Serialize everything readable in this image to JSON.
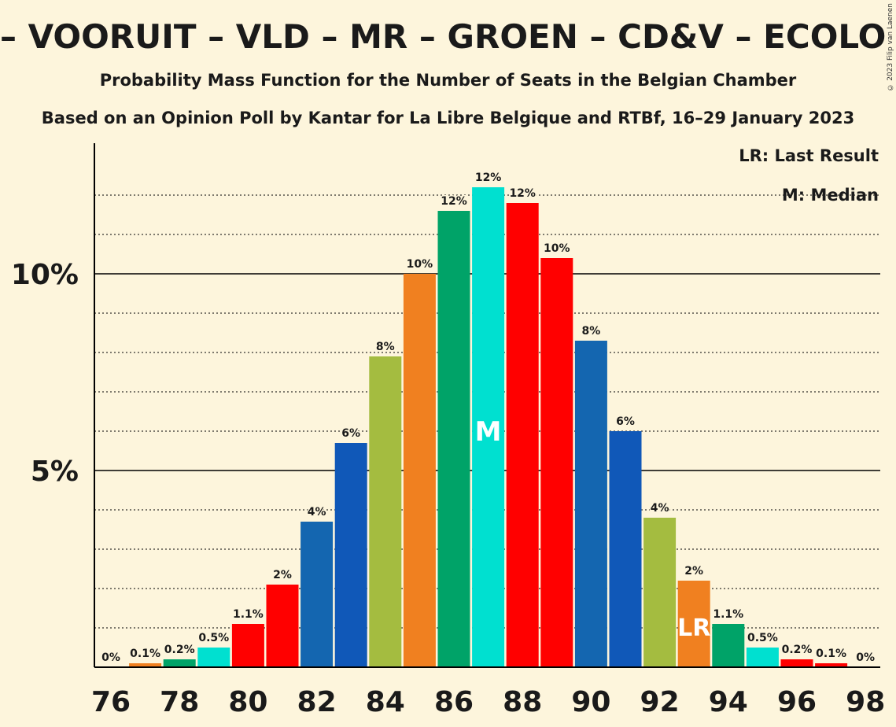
{
  "title": "– VOORUIT – VLD – MR – GROEN – CD&V – ECOLO –",
  "subtitle": "Probability Mass Function for the Number of Seats in the Belgian Chamber",
  "subtitle2": "Based on an Opinion Poll by Kantar for La Libre Belgique and RTBf, 16–29 January 2023",
  "copyright": "© 2023 Filip van Laenen",
  "legend": {
    "last_result": "LR: Last Result",
    "median": "M: Median"
  },
  "chart_data": {
    "type": "bar",
    "x": [
      76,
      77,
      78,
      79,
      80,
      81,
      82,
      83,
      84,
      85,
      86,
      87,
      88,
      89,
      90,
      91,
      92,
      93,
      94,
      95,
      96,
      97,
      98
    ],
    "values": [
      0,
      0.1,
      0.2,
      0.5,
      1.1,
      2.1,
      3.7,
      5.7,
      7.9,
      10.0,
      11.6,
      12.2,
      11.8,
      10.4,
      8.3,
      6.0,
      3.8,
      2.2,
      1.1,
      0.5,
      0.2,
      0.1,
      0
    ],
    "labels": [
      "0%",
      "0.1%",
      "0.2%",
      "0.5%",
      "1.1%",
      "2%",
      "4%",
      "6%",
      "8%",
      "10%",
      "12%",
      "12%",
      "12%",
      "10%",
      "8%",
      "6%",
      "4%",
      "2%",
      "1.1%",
      "0.5%",
      "0.2%",
      "0.1%",
      "0%"
    ],
    "colors": [
      "#00a368",
      "#f08020",
      "#00a368",
      "#00e0d0",
      "#ff0000",
      "#ff0000",
      "#1466b0",
      "#1058b8",
      "#a4bc40",
      "#f08020",
      "#00a368",
      "#00e0d0",
      "#ff0000",
      "#ff0000",
      "#1466b0",
      "#1058b8",
      "#a4bc40",
      "#f08020",
      "#00a368",
      "#00e0d0",
      "#ff0000",
      "#ff0000",
      "#1466b0"
    ],
    "x_tick_labels": [
      "76",
      "78",
      "80",
      "82",
      "84",
      "86",
      "88",
      "90",
      "92",
      "94",
      "96",
      "98"
    ],
    "y_tick_labels": [
      "5%",
      "10%"
    ],
    "ylim": [
      0,
      13.3
    ],
    "median_seat": 87,
    "median_marker": "M",
    "last_result_seat": 93,
    "last_result_marker": "LR"
  }
}
